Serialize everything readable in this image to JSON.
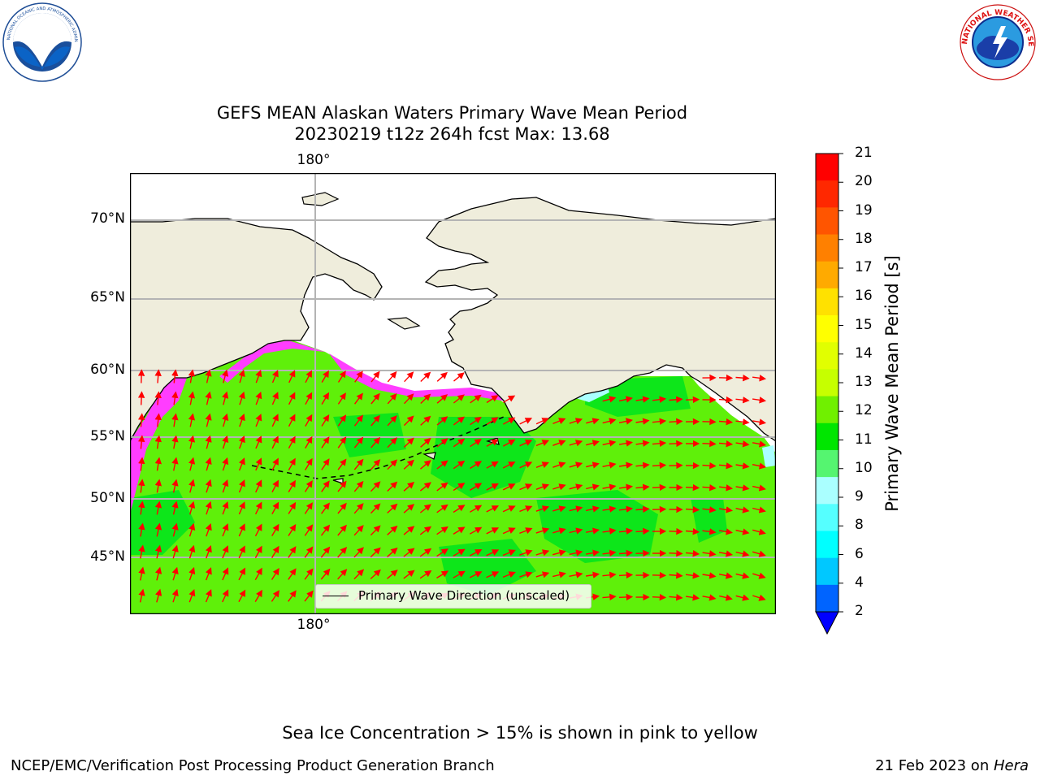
{
  "logos": {
    "left": {
      "name": "NOAA",
      "ring_text": "NATIONAL OCEANIC AND ATMOSPHERIC ADMINISTRATION"
    },
    "right": {
      "name": "NATIONAL WEATHER SERVICE"
    }
  },
  "title": {
    "line1": "GEFS MEAN Alaskan Waters Primary Wave Mean Period",
    "line2": "20230219 t12z 264h fcst   Max: 13.68"
  },
  "map": {
    "lat_labels": [
      "70°N",
      "65°N",
      "60°N",
      "55°N",
      "50°N",
      "45°N"
    ],
    "lon_label_top": "180°",
    "lon_label_bottom": "180°",
    "legend_label": "Primary Wave Direction (unscaled)",
    "colors": {
      "land": "#efeddc",
      "sea": "#5ff00a",
      "sea_dark": "#0de61a",
      "ice": "#ff3dff",
      "arrow": "#ff0000"
    }
  },
  "colorbar": {
    "title": "Primary Wave Mean Period [s]",
    "ticks": [
      "21",
      "20",
      "19",
      "18",
      "17",
      "16",
      "15",
      "14",
      "13",
      "12",
      "11",
      "10",
      "9",
      "8",
      "6",
      "4",
      "2"
    ],
    "colors": [
      "#ff0000",
      "#ff2800",
      "#ff5500",
      "#ff8000",
      "#ffaa00",
      "#ffe100",
      "#ffff00",
      "#e1ff00",
      "#c6ff00",
      "#70f000",
      "#00e600",
      "#55f570",
      "#aaffff",
      "#55ffff",
      "#00ffff",
      "#00c8ff",
      "#0064ff"
    ],
    "extend_color": "#0000ff"
  },
  "footer": {
    "note": "Sea Ice Concentration > 15% is shown in pink to yellow",
    "left": "NCEP/EMC/Verification Post Processing Product Generation Branch",
    "right_prefix": "21 Feb 2023 on ",
    "right_machine": "Hera"
  }
}
